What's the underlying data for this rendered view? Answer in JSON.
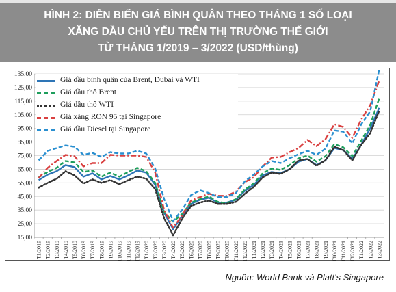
{
  "title": {
    "line1": "HÌNH 2: DIỄN BIẾN GIÁ BÌNH QUÂN THEO THÁNG 1 SỐ LOẠI",
    "line2": "XĂNG DẦU CHỦ YẾU TRÊN THỊ TRƯỜNG THẾ GIỚI",
    "line3": "TỪ THÁNG 1/2019 – 3/2022 (USD/thùng)"
  },
  "source": "Nguồn: World Bank và Platt's Singapore",
  "chart_data": {
    "type": "line",
    "ylim": [
      15,
      135
    ],
    "yticks": [
      "15,00",
      "25,00",
      "35,00",
      "45,00",
      "55,00",
      "65,00",
      "75,00",
      "85,00",
      "95,00",
      "105,00",
      "115,00",
      "125,00",
      "135,00"
    ],
    "categories": [
      "T1/2019",
      "T2/2019",
      "T3/2019",
      "T4/2019",
      "T5/2019",
      "T6/2019",
      "T7/2019",
      "T8/2019",
      "T9/2019",
      "T10/2019",
      "T11/2019",
      "T12/2019",
      "T1/2020",
      "T2/2020",
      "T3/2020",
      "T4/2020",
      "T5/2020",
      "T6/2020",
      "T7/2020",
      "T8/2020",
      "T9/2020",
      "T10/2020",
      "T11/2020",
      "T12/2020",
      "T1/2021",
      "T2/2021",
      "T3/2021",
      "T4/2021",
      "T5/2021",
      "T6/2021",
      "T7/2021",
      "T8/2021",
      "T9/2021",
      "T10/2021",
      "T11/2021",
      "T12/2021",
      "T1/2022",
      "T2/2022",
      "T3/2022"
    ],
    "legend_position": "top-left",
    "series": [
      {
        "name": "Giá dầu bình quân của  Brent, Dubai và WTI",
        "color": "#2e75b6",
        "dash": "solid",
        "values": [
          57.0,
          61.0,
          63.5,
          68.0,
          66.5,
          59.5,
          62.0,
          57.5,
          60.0,
          57.5,
          60.5,
          64.0,
          62.5,
          53.5,
          33.0,
          21.0,
          30.5,
          39.5,
          42.5,
          44.0,
          40.5,
          40.5,
          42.5,
          49.0,
          53.5,
          60.5,
          63.0,
          62.0,
          65.0,
          70.5,
          72.5,
          68.0,
          71.5,
          80.5,
          79.0,
          72.5,
          83.0,
          95.0,
          110.0
        ]
      },
      {
        "name": "Giá dầu thô Brent",
        "color": "#1e9e5c",
        "dash": "dash",
        "values": [
          59.0,
          63.0,
          66.0,
          71.0,
          70.0,
          63.0,
          64.0,
          59.5,
          62.5,
          59.5,
          63.0,
          66.0,
          63.5,
          55.0,
          33.5,
          26.5,
          32.0,
          40.5,
          43.0,
          45.0,
          41.0,
          40.0,
          43.0,
          50.0,
          54.5,
          62.0,
          65.5,
          64.5,
          68.0,
          73.0,
          75.0,
          70.5,
          74.5,
          83.5,
          81.0,
          74.5,
          86.0,
          97.5,
          117.0
        ]
      },
      {
        "name": "Giá dầu thô WTI",
        "color": "#333333",
        "dash": "dot",
        "values": [
          51.5,
          55.0,
          58.0,
          63.5,
          60.5,
          54.5,
          57.5,
          55.0,
          57.0,
          54.0,
          57.0,
          59.5,
          58.0,
          50.5,
          29.0,
          16.5,
          28.5,
          38.0,
          40.5,
          42.0,
          39.5,
          39.5,
          41.0,
          47.0,
          52.0,
          59.0,
          62.5,
          61.5,
          65.0,
          71.5,
          72.5,
          67.5,
          71.5,
          81.5,
          79.0,
          71.5,
          83.0,
          91.5,
          108.0
        ]
      },
      {
        "name": "Giá xăng RON 95 tại Singapore",
        "color": "#d94040",
        "dash": "dashdot",
        "values": [
          58.5,
          66.0,
          71.0,
          75.5,
          74.5,
          67.0,
          69.5,
          69.5,
          75.5,
          75.0,
          75.0,
          75.0,
          74.0,
          62.5,
          35.0,
          22.0,
          31.0,
          42.0,
          44.5,
          47.0,
          45.5,
          45.5,
          48.5,
          55.5,
          59.0,
          67.0,
          73.5,
          74.0,
          77.5,
          80.5,
          86.5,
          82.0,
          87.0,
          98.0,
          96.0,
          88.0,
          101.5,
          112.0,
          130.0
        ]
      },
      {
        "name": "Giá dầu Diesel tại Singapore",
        "color": "#2a8fd0",
        "dash": "dash",
        "values": [
          71.5,
          78.5,
          80.5,
          82.5,
          81.5,
          75.5,
          77.0,
          74.0,
          77.5,
          76.5,
          76.5,
          78.5,
          76.5,
          65.5,
          43.0,
          27.0,
          35.0,
          46.0,
          49.5,
          47.5,
          44.5,
          44.5,
          47.5,
          56.0,
          61.0,
          67.0,
          71.0,
          69.5,
          73.0,
          76.0,
          78.5,
          75.5,
          80.0,
          93.5,
          92.5,
          84.0,
          98.0,
          107.5,
          138.0
        ]
      }
    ]
  }
}
